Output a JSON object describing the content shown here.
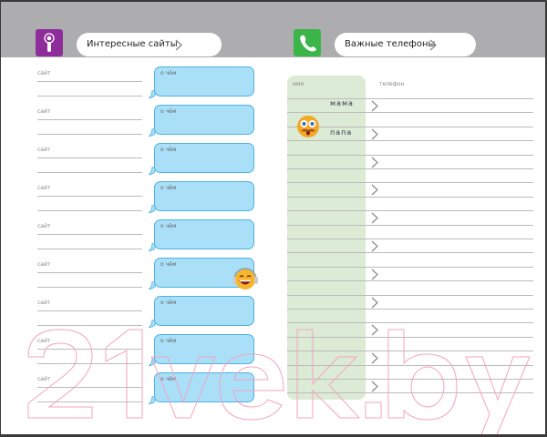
{
  "left_section": {
    "title": "Интересные сайты",
    "icon": "info-icon",
    "icon_color": "#8e2c9a",
    "rows": [
      {
        "site_label": "сайт",
        "about_label": "о чём"
      },
      {
        "site_label": "сайт",
        "about_label": "о чём"
      },
      {
        "site_label": "сайт",
        "about_label": "о чём"
      },
      {
        "site_label": "сайт",
        "about_label": "о чём"
      },
      {
        "site_label": "сайт",
        "about_label": "о чём"
      },
      {
        "site_label": "сайт",
        "about_label": "о чём"
      },
      {
        "site_label": "сайт",
        "about_label": "о чём"
      },
      {
        "site_label": "сайт",
        "about_label": "о чём"
      },
      {
        "site_label": "сайт",
        "about_label": "о чём"
      }
    ]
  },
  "right_section": {
    "title": "Важные телефоны",
    "icon": "phone-icon",
    "icon_color": "#3bb54a",
    "col_name": "имя",
    "col_phone": "телефон",
    "entries": [
      "мама",
      "папа"
    ]
  },
  "watermark": "21vek.by",
  "colors": {
    "header": "#adadb0",
    "bubble": "#aadff8",
    "bubble_border": "#4db3e0",
    "name_column": "#dcebd5"
  }
}
